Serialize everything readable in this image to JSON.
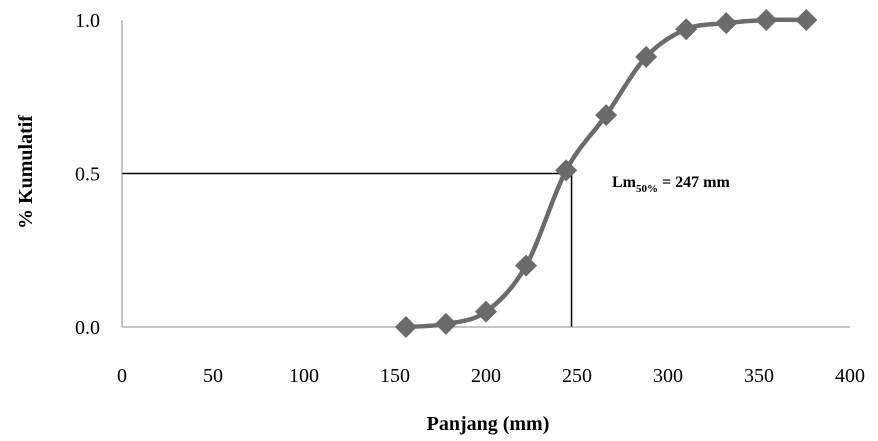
{
  "chart_data": {
    "type": "line",
    "xlabel": "Panjang (mm)",
    "ylabel": "% Kumulatif",
    "xlim": [
      0,
      400
    ],
    "ylim": [
      0,
      1.0
    ],
    "x_ticks": [
      "0",
      "50",
      "100",
      "150",
      "200",
      "250",
      "300",
      "350",
      "400"
    ],
    "y_ticks": [
      "0.0",
      "0.5",
      "1.0"
    ],
    "grid": false,
    "line_color": "#6b6b6b",
    "marker": "diamond",
    "series": [
      {
        "x": [
          156,
          178,
          200,
          222,
          244,
          266,
          288,
          310,
          332,
          354,
          376
        ],
        "values": [
          0.0,
          0.01,
          0.05,
          0.2,
          0.51,
          0.69,
          0.88,
          0.97,
          0.99,
          1.0,
          1.0
        ]
      }
    ],
    "reference_lines": {
      "x": 247,
      "y": 0.5
    },
    "annotation": {
      "prefix": "Lm",
      "subscript": "50%",
      "suffix": " = 247 mm",
      "x": 247,
      "y": 0.5
    }
  }
}
